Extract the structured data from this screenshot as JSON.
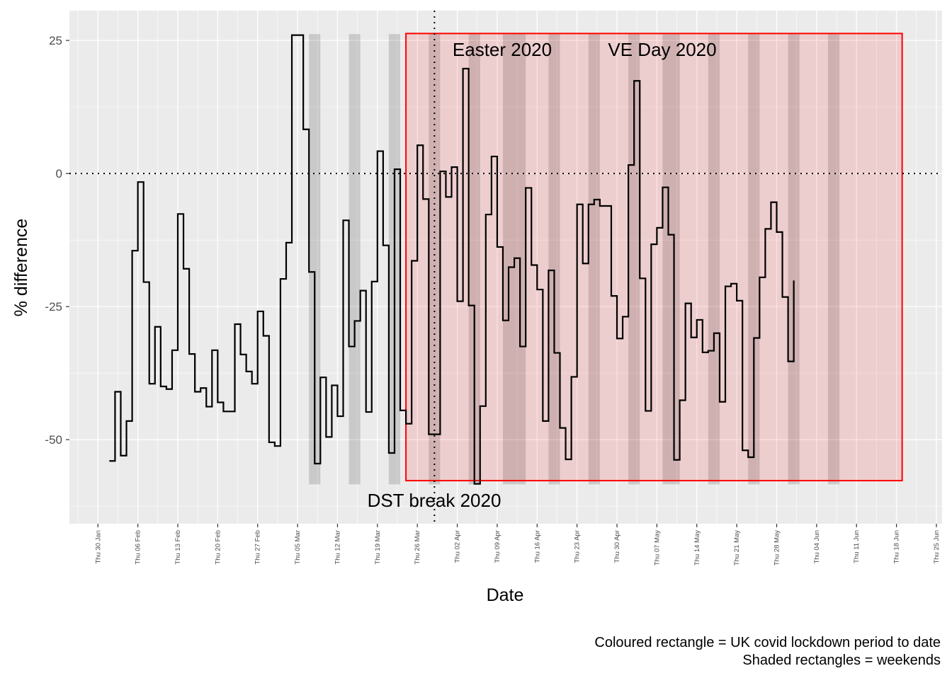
{
  "chart_data": {
    "type": "step",
    "x_label": "Date",
    "y_label": "% difference",
    "caption": [
      "Coloured rectangle = UK covid lockdown period to date",
      "Shaded rectangles = weekends"
    ],
    "annotations": [
      "Easter 2020",
      "VE Day 2020",
      "DST break 2020"
    ],
    "color": "#000000",
    "x": [
      "Sat 01 Feb",
      "Sun 02 Feb",
      "Mon 03 Feb",
      "Tue 04 Feb",
      "Wed 05 Feb",
      "Thu 06 Feb",
      "Fri 07 Feb",
      "Sat 08 Feb",
      "Sun 09 Feb",
      "Mon 10 Feb",
      "Tue 11 Feb",
      "Wed 12 Feb",
      "Thu 13 Feb",
      "Fri 14 Feb",
      "Sat 15 Feb",
      "Sun 16 Feb",
      "Mon 17 Feb",
      "Tue 18 Feb",
      "Wed 19 Feb",
      "Thu 20 Feb",
      "Fri 21 Feb",
      "Sat 22 Feb",
      "Sun 23 Feb",
      "Mon 24 Feb",
      "Tue 25 Feb",
      "Wed 26 Feb",
      "Thu 27 Feb",
      "Fri 28 Feb",
      "Sat 29 Feb",
      "Sun 01 Mar",
      "Mon 02 Mar",
      "Tue 03 Mar",
      "Wed 04 Mar",
      "Thu 05 Mar",
      "Fri 06 Mar",
      "Sat 07 Mar",
      "Sun 08 Mar",
      "Mon 09 Mar",
      "Tue 10 Mar",
      "Wed 11 Mar",
      "Thu 12 Mar",
      "Fri 13 Mar",
      "Sat 14 Mar",
      "Sun 15 Mar",
      "Mon 16 Mar",
      "Tue 17 Mar",
      "Wed 18 Mar",
      "Thu 19 Mar",
      "Fri 20 Mar",
      "Sat 21 Mar",
      "Sun 22 Mar",
      "Mon 23 Mar",
      "Tue 24 Mar",
      "Wed 25 Mar",
      "Thu 26 Mar",
      "Fri 27 Mar",
      "Sat 28 Mar",
      "Sun 29 Mar",
      "Mon 30 Mar",
      "Tue 31 Mar",
      "Wed 01 Apr",
      "Thu 02 Apr",
      "Fri 03 Apr",
      "Sat 04 Apr",
      "Sun 05 Apr",
      "Mon 06 Apr",
      "Tue 07 Apr",
      "Wed 08 Apr",
      "Thu 09 Apr",
      "Fri 10 Apr",
      "Sat 11 Apr",
      "Sun 12 Apr",
      "Mon 13 Apr",
      "Tue 14 Apr",
      "Wed 15 Apr",
      "Thu 16 Apr",
      "Fri 17 Apr",
      "Sat 18 Apr",
      "Sun 19 Apr",
      "Mon 20 Apr",
      "Tue 21 Apr",
      "Wed 22 Apr",
      "Thu 23 Apr",
      "Fri 24 Apr",
      "Sat 25 Apr",
      "Sun 26 Apr",
      "Mon 27 Apr",
      "Tue 28 Apr",
      "Wed 29 Apr",
      "Thu 30 Apr",
      "Fri 01 May",
      "Sat 02 May",
      "Sun 03 May",
      "Mon 04 May",
      "Tue 05 May",
      "Wed 06 May",
      "Thu 07 May",
      "Fri 08 May",
      "Sat 09 May",
      "Sun 10 May",
      "Mon 11 May",
      "Tue 12 May",
      "Wed 13 May",
      "Thu 14 May",
      "Fri 15 May",
      "Sat 16 May",
      "Sun 17 May",
      "Mon 18 May",
      "Tue 19 May",
      "Wed 20 May",
      "Thu 21 May",
      "Fri 22 May",
      "Sat 23 May",
      "Sun 24 May",
      "Mon 25 May",
      "Tue 26 May",
      "Wed 27 May",
      "Thu 28 May",
      "Fri 29 May",
      "Sat 30 May",
      "Sun 31 May"
    ],
    "values": [
      -54,
      -41,
      -53,
      -46.5,
      -14.5,
      -1.6,
      -20.4,
      -39.5,
      -28.8,
      -40,
      -40.5,
      -33.2,
      -7.6,
      -17.9,
      -33.9,
      -41,
      -40.3,
      -43.8,
      -33.2,
      -43,
      -44.7,
      -44.7,
      -28.3,
      -34,
      -37.2,
      -39.5,
      -25.9,
      -30.5,
      -50.5,
      -51.2,
      -19.8,
      -13,
      26,
      26,
      8.3,
      -18.5,
      -54.5,
      -38.3,
      -49.5,
      -39.8,
      -45.6,
      -8.8,
      -32.5,
      -27.7,
      -22,
      -44.8,
      -20.3,
      4.2,
      -13.5,
      -52.5,
      0.8,
      -44.5,
      -47,
      -16.4,
      5.3,
      -4.8,
      -49,
      -49,
      0.4,
      -4.4,
      1.2,
      -24,
      19.7,
      -24.8,
      -58.3,
      -43.7,
      -7.7,
      3.2,
      -13.8,
      -27.6,
      -17.6,
      -15.9,
      -32.5,
      -2.7,
      -17.2,
      -21.8,
      -46.5,
      -18.2,
      -33.7,
      -47.8,
      -53.7,
      -38.2,
      -5.8,
      -16.9,
      -5.8,
      -4.9,
      -6.1,
      -6.1,
      -23,
      -31,
      -26.9,
      1.6,
      17.4,
      -19.7,
      -44.6,
      -13.3,
      -10.2,
      -2.6,
      -11.5,
      -53.8,
      -42.6,
      -24.4,
      -30.8,
      -27.5,
      -33.6,
      -33.3,
      -30,
      -42.9,
      -21.2,
      -20.7,
      -23.9,
      -52,
      -53.3,
      -30.9,
      -19.5,
      -10.4,
      -5.4,
      -11,
      -23.2,
      -35.3,
      -20.1
    ],
    "xlim": [
      "Sat 25 Jan",
      "Fri 26 Jun"
    ],
    "xticks": [
      "Thu 30 Jan",
      "Thu 06 Feb",
      "Thu 13 Feb",
      "Thu 20 Feb",
      "Thu 27 Feb",
      "Thu 05 Mar",
      "Thu 12 Mar",
      "Thu 19 Mar",
      "Thu 26 Mar",
      "Thu 02 Apr",
      "Thu 09 Apr",
      "Thu 16 Apr",
      "Thu 23 Apr",
      "Thu 30 Apr",
      "Thu 07 May",
      "Thu 14 May",
      "Thu 21 May",
      "Thu 28 May",
      "Thu 04 Jun",
      "Thu 11 Jun",
      "Thu 18 Jun",
      "Thu 25 Jun"
    ],
    "ylim": [
      -65.8,
      30.6
    ],
    "yticks": [
      -50,
      -25,
      0,
      25
    ],
    "grid": true,
    "weekends": {
      "color": "#000000",
      "ylim": [
        -58.4,
        26.2
      ],
      "periods": [
        [
          "Sat 07 Mar",
          "Mon 09 Mar"
        ],
        [
          "Sat 14 Mar",
          "Mon 16 Mar"
        ],
        [
          "Sat 21 Mar",
          "Mon 23 Mar"
        ],
        [
          "Sat 28 Mar",
          "Mon 30 Mar"
        ],
        [
          "Sat 04 Apr",
          "Mon 06 Apr"
        ],
        [
          "Fri 10 Apr",
          "Tue 14 Apr"
        ],
        [
          "Sat 18 Apr",
          "Mon 20 Apr"
        ],
        [
          "Sat 25 Apr",
          "Mon 27 Apr"
        ],
        [
          "Sat 02 May",
          "Mon 04 May"
        ],
        [
          "Fri 08 May",
          "Mon 11 May"
        ],
        [
          "Sat 16 May",
          "Mon 18 May"
        ],
        [
          "Sat 23 May",
          "Mon 25 May"
        ],
        [
          "Sat 30 May",
          "Mon 01 Jun"
        ],
        [
          "Sat 06 Jun",
          "Mon 08 Jun"
        ]
      ]
    },
    "lockdown": {
      "start": "Tue 24 Mar",
      "end": "Fri 19 Jun",
      "ylim": [
        -57.7,
        26.3
      ],
      "color": "#ff0000"
    },
    "hline": 0,
    "vline": "Sun 29 Mar"
  }
}
